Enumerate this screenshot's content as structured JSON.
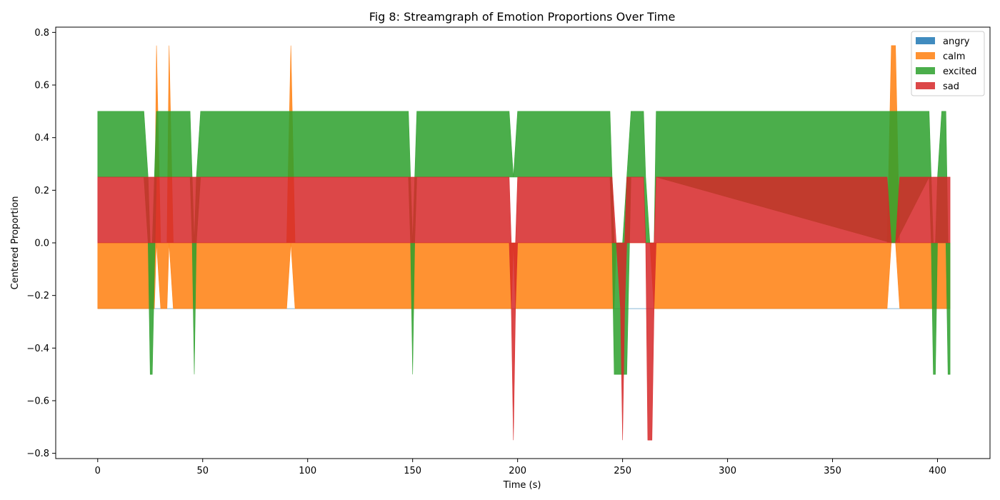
{
  "chart_data": {
    "type": "area",
    "title": "Fig 8: Streamgraph of Emotion Proportions Over Time",
    "xlabel": "Time (s)",
    "ylabel": "Centered Proportion",
    "xlim": [
      -20,
      425
    ],
    "ylim": [
      -0.82,
      0.82
    ],
    "x_ticks": [
      0,
      50,
      100,
      150,
      200,
      250,
      300,
      350,
      400
    ],
    "y_ticks": [
      -0.8,
      -0.6,
      -0.4,
      -0.2,
      0.0,
      0.2,
      0.4,
      0.6,
      0.8
    ],
    "y_tick_labels": [
      "−0.8",
      "−0.6",
      "−0.4",
      "−0.2",
      "0.0",
      "0.2",
      "0.4",
      "0.6",
      "0.8"
    ],
    "grid": false,
    "legend_position": "top-right",
    "series": [
      {
        "name": "angry",
        "color": "#1f77b4",
        "x": [
          0,
          406
        ],
        "lower": [
          -0.25,
          -0.25
        ],
        "upper": [
          -0.25,
          -0.25
        ]
      },
      {
        "name": "calm",
        "color": "#ff7f0e",
        "x": [
          0,
          22,
          25,
          27,
          28,
          30,
          31,
          33,
          34,
          36,
          90,
          92,
          94,
          197,
          198,
          199,
          246,
          247,
          250,
          251,
          252,
          262,
          263,
          265,
          376,
          378,
          380,
          382,
          396,
          398,
          400,
          402,
          405,
          406
        ],
        "lower": [
          -0.25,
          -0.25,
          -0.25,
          -0.25,
          0.0,
          -0.25,
          -0.25,
          -0.25,
          0.0,
          -0.25,
          -0.25,
          0.0,
          -0.25,
          -0.25,
          0.0,
          -0.25,
          -0.25,
          0.0,
          0.0,
          0.0,
          0.0,
          0.0,
          0.0,
          -0.25,
          -0.25,
          0.0,
          0.0,
          -0.25,
          -0.25,
          -0.25,
          -0.25,
          -0.25,
          -0.25,
          -0.25
        ],
        "upper": [
          0.0,
          0.0,
          0.0,
          0.0,
          0.75,
          0.0,
          0.0,
          0.0,
          0.75,
          0.0,
          0.0,
          0.75,
          0.0,
          0.0,
          0.0,
          0.0,
          0.0,
          0.0,
          0.0,
          0.0,
          0.0,
          0.0,
          0.0,
          0.0,
          0.0,
          0.75,
          0.75,
          0.0,
          0.0,
          0.0,
          0.0,
          0.0,
          0.0,
          0.0
        ]
      },
      {
        "name": "excited",
        "color": "#2ca02c",
        "x": [
          0,
          22,
          24,
          25,
          26,
          28,
          34,
          44,
          45,
          46,
          47,
          49,
          148,
          149,
          150,
          151,
          152,
          196,
          198,
          200,
          244,
          245,
          246,
          248,
          250,
          252,
          254,
          260,
          261,
          263,
          264,
          265,
          266,
          378,
          379,
          380,
          396,
          397,
          398,
          399,
          400,
          402,
          403,
          404,
          405,
          406
        ],
        "lower": [
          0.25,
          0.25,
          0.0,
          -0.5,
          -0.5,
          0.25,
          0.25,
          0.25,
          0.0,
          -0.5,
          0.0,
          0.25,
          0.25,
          0.0,
          -0.5,
          0.0,
          0.25,
          0.25,
          0.25,
          0.25,
          0.25,
          0.0,
          -0.5,
          -0.5,
          -0.5,
          -0.5,
          0.25,
          0.25,
          0.0,
          0.0,
          0.0,
          0.0,
          0.25,
          0.0,
          0.0,
          0.0,
          0.25,
          0.0,
          -0.5,
          -0.5,
          0.0,
          0.0,
          0.0,
          0.0,
          -0.5,
          -0.5
        ],
        "upper": [
          0.5,
          0.5,
          0.25,
          0.0,
          0.0,
          0.5,
          0.5,
          0.5,
          0.25,
          0.0,
          0.25,
          0.5,
          0.5,
          0.25,
          0.0,
          0.25,
          0.5,
          0.5,
          0.25,
          0.5,
          0.5,
          0.25,
          0.0,
          0.0,
          0.0,
          0.25,
          0.5,
          0.5,
          0.25,
          0.0,
          0.0,
          0.0,
          0.5,
          0.5,
          0.5,
          0.5,
          0.5,
          0.25,
          0.0,
          0.0,
          0.25,
          0.5,
          0.5,
          0.5,
          0.0,
          0.0
        ]
      },
      {
        "name": "sad",
        "color": "#d62728",
        "x": [
          0,
          22,
          24,
          25,
          26,
          27,
          28,
          33,
          34,
          35,
          44,
          45,
          46,
          47,
          90,
          92,
          94,
          148,
          149,
          150,
          151,
          152,
          196,
          197,
          198,
          199,
          200,
          244,
          245,
          247,
          249,
          250,
          251,
          252,
          253,
          260,
          261,
          262,
          263,
          264,
          265,
          266,
          376,
          378,
          380,
          382,
          396,
          398,
          400,
          402,
          405,
          406
        ],
        "lower": [
          0.0,
          0.0,
          0.0,
          0.0,
          0.0,
          0.0,
          0.0,
          0.0,
          0.0,
          0.0,
          0.0,
          0.0,
          0.0,
          0.0,
          0.0,
          0.0,
          0.0,
          0.0,
          0.0,
          0.0,
          0.0,
          0.0,
          0.0,
          -0.25,
          -0.75,
          -0.25,
          0.0,
          0.0,
          0.0,
          0.0,
          -0.25,
          -0.75,
          -0.25,
          0.0,
          0.0,
          0.0,
          0.0,
          -0.75,
          -0.75,
          -0.75,
          -0.25,
          0.0,
          0.0,
          0.0,
          0.0,
          0.0,
          0.0,
          0.0,
          0.0,
          0.0,
          0.0,
          0.0
        ],
        "upper": [
          0.25,
          0.25,
          0.25,
          0.25,
          0.25,
          0.25,
          0.25,
          0.25,
          0.25,
          0.25,
          0.25,
          0.25,
          0.25,
          0.25,
          0.25,
          0.25,
          0.25,
          0.25,
          0.25,
          0.25,
          0.25,
          0.25,
          0.25,
          0.0,
          0.0,
          0.0,
          0.25,
          0.25,
          0.25,
          0.0,
          0.0,
          0.0,
          0.0,
          0.25,
          0.25,
          0.25,
          0.0,
          0.0,
          0.0,
          0.0,
          0.0,
          0.25,
          0.25,
          0.0,
          0.0,
          0.25,
          0.25,
          0.25,
          0.25,
          0.25,
          0.25,
          0.25
        ]
      }
    ]
  }
}
